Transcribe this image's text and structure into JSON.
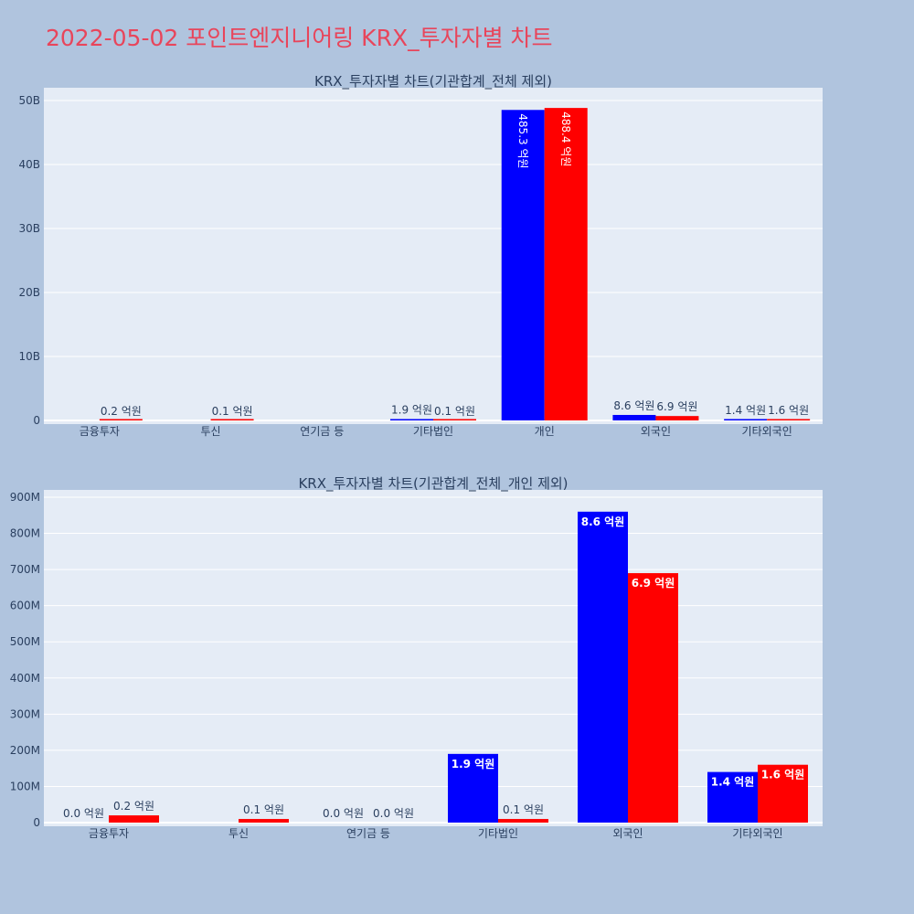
{
  "title": "2022-05-02 포인트엔지니어링 KRX_투자자별 차트",
  "colors": {
    "buy": "#0000ff",
    "sell": "#ff0000",
    "title": "#e8455b",
    "background": "#b0c4de",
    "plot_bg": "#e5ecf6"
  },
  "chart_data": [
    {
      "type": "bar",
      "title": "KRX_투자자별 차트(기관합계_전체 제외)",
      "categories": [
        "금융투자",
        "투신",
        "연기금 등",
        "기타법인",
        "개인",
        "외국인",
        "기타외국인"
      ],
      "ylim": [
        0,
        50000000000
      ],
      "yticks": [
        0,
        10000000000,
        20000000000,
        30000000000,
        40000000000,
        50000000000
      ],
      "ytick_labels": [
        "0",
        "10B",
        "20B",
        "30B",
        "40B",
        "50B"
      ],
      "grid": true,
      "series": [
        {
          "color": "#0000ff",
          "values": [
            0,
            0,
            0,
            190000000,
            48530000000,
            860000000,
            140000000
          ],
          "labels": [
            "",
            "",
            "",
            "1.9 억원",
            "485.3 억원",
            "8.6 억원",
            "1.4 억원"
          ]
        },
        {
          "color": "#ff0000",
          "values": [
            20000000,
            10000000,
            0,
            10000000,
            48840000000,
            690000000,
            160000000
          ],
          "labels": [
            "0.2 억원",
            "0.1 억원",
            "",
            "0.1 억원",
            "488.4 억원",
            "6.9 억원",
            "1.6 억원"
          ]
        }
      ]
    },
    {
      "type": "bar",
      "title": "KRX_투자자별 차트(기관합계_전체_개인 제외)",
      "categories": [
        "금융투자",
        "투신",
        "연기금 등",
        "기타법인",
        "외국인",
        "기타외국인"
      ],
      "ylim": [
        0,
        900000000
      ],
      "yticks": [
        0,
        100000000,
        200000000,
        300000000,
        400000000,
        500000000,
        600000000,
        700000000,
        800000000,
        900000000
      ],
      "ytick_labels": [
        "0",
        "100M",
        "200M",
        "300M",
        "400M",
        "500M",
        "600M",
        "700M",
        "800M",
        "900M"
      ],
      "grid": true,
      "series": [
        {
          "color": "#0000ff",
          "values": [
            0,
            0,
            0,
            190000000,
            860000000,
            140000000
          ],
          "labels": [
            "0.0 억원",
            "",
            "0.0 억원",
            "1.9 억원",
            "8.6 억원",
            "1.4 억원"
          ]
        },
        {
          "color": "#ff0000",
          "values": [
            20000000,
            10000000,
            0,
            10000000,
            690000000,
            160000000
          ],
          "labels": [
            "0.2 억원",
            "0.1 억원",
            "0.0 억원",
            "0.1 억원",
            "6.9 억원",
            "1.6 억원"
          ]
        }
      ]
    }
  ]
}
